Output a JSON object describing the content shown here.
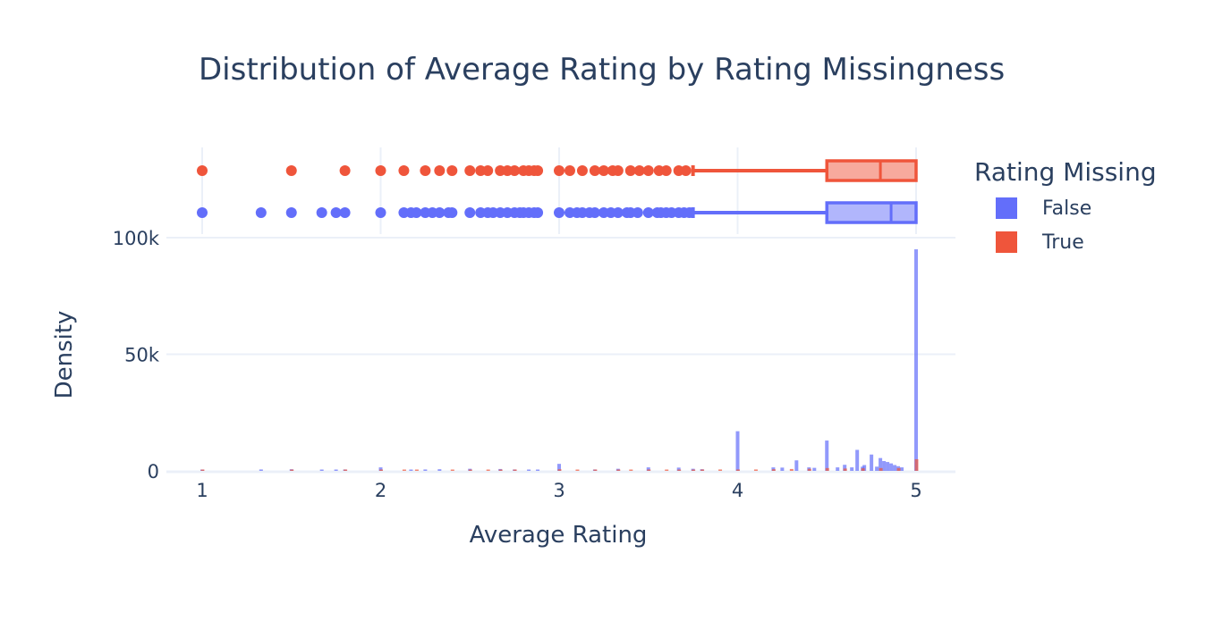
{
  "chart_data": {
    "type": "histogram",
    "title": "Distribution of Average Rating by Rating Missingness",
    "xlabel": "Average Rating",
    "ylabel": "Density",
    "x_ticks": [
      "1",
      "2",
      "3",
      "4",
      "5"
    ],
    "y_ticks": [
      "0",
      "50k",
      "100k"
    ],
    "xlim": [
      0.8,
      5.2
    ],
    "ylim": [
      0,
      100000
    ],
    "legend": {
      "title": "Rating Missing",
      "placement": "right"
    },
    "marginal": "box",
    "series": [
      {
        "name": "False",
        "color": "#636efa",
        "histogram": [
          {
            "x": 1.0,
            "y": 300
          },
          {
            "x": 1.33,
            "y": 600
          },
          {
            "x": 1.5,
            "y": 700
          },
          {
            "x": 1.67,
            "y": 500
          },
          {
            "x": 1.75,
            "y": 400
          },
          {
            "x": 1.8,
            "y": 600
          },
          {
            "x": 2.0,
            "y": 1500
          },
          {
            "x": 2.17,
            "y": 400
          },
          {
            "x": 2.25,
            "y": 600
          },
          {
            "x": 2.33,
            "y": 700
          },
          {
            "x": 2.5,
            "y": 900
          },
          {
            "x": 2.67,
            "y": 800
          },
          {
            "x": 2.75,
            "y": 600
          },
          {
            "x": 2.83,
            "y": 500
          },
          {
            "x": 2.88,
            "y": 400
          },
          {
            "x": 3.0,
            "y": 3000
          },
          {
            "x": 3.2,
            "y": 600
          },
          {
            "x": 3.33,
            "y": 900
          },
          {
            "x": 3.5,
            "y": 1500
          },
          {
            "x": 3.67,
            "y": 1400
          },
          {
            "x": 3.75,
            "y": 900
          },
          {
            "x": 3.8,
            "y": 700
          },
          {
            "x": 4.0,
            "y": 17000
          },
          {
            "x": 4.2,
            "y": 1500
          },
          {
            "x": 4.25,
            "y": 1400
          },
          {
            "x": 4.33,
            "y": 4500
          },
          {
            "x": 4.4,
            "y": 1500
          },
          {
            "x": 4.43,
            "y": 1300
          },
          {
            "x": 4.5,
            "y": 13000
          },
          {
            "x": 4.56,
            "y": 1500
          },
          {
            "x": 4.6,
            "y": 2600
          },
          {
            "x": 4.64,
            "y": 1500
          },
          {
            "x": 4.67,
            "y": 9000
          },
          {
            "x": 4.7,
            "y": 1800
          },
          {
            "x": 4.71,
            "y": 2500
          },
          {
            "x": 4.75,
            "y": 7000
          },
          {
            "x": 4.78,
            "y": 1800
          },
          {
            "x": 4.8,
            "y": 5500
          },
          {
            "x": 4.82,
            "y": 4200
          },
          {
            "x": 4.84,
            "y": 3800
          },
          {
            "x": 4.86,
            "y": 3200
          },
          {
            "x": 4.88,
            "y": 2500
          },
          {
            "x": 4.9,
            "y": 2000
          },
          {
            "x": 4.92,
            "y": 1500
          },
          {
            "x": 5.0,
            "y": 95000
          }
        ],
        "box": {
          "min": 3.75,
          "q1": 4.5,
          "median": 4.86,
          "q3": 5.0,
          "max": 5.0
        },
        "outliers": [
          1.0,
          1.33,
          1.5,
          1.67,
          1.75,
          1.8,
          2.0,
          2.13,
          2.17,
          2.2,
          2.25,
          2.29,
          2.33,
          2.38,
          2.4,
          2.5,
          2.56,
          2.6,
          2.63,
          2.67,
          2.71,
          2.75,
          2.78,
          2.8,
          2.83,
          2.86,
          2.88,
          3.0,
          3.06,
          3.1,
          3.13,
          3.17,
          3.2,
          3.25,
          3.29,
          3.33,
          3.38,
          3.4,
          3.44,
          3.5,
          3.55,
          3.57,
          3.6,
          3.63,
          3.67,
          3.7,
          3.73
        ]
      },
      {
        "name": "True",
        "color": "#ef553b",
        "histogram": [
          {
            "x": 1.0,
            "y": 400
          },
          {
            "x": 1.5,
            "y": 400
          },
          {
            "x": 1.8,
            "y": 200
          },
          {
            "x": 2.0,
            "y": 400
          },
          {
            "x": 2.13,
            "y": 200
          },
          {
            "x": 2.2,
            "y": 200
          },
          {
            "x": 2.4,
            "y": 300
          },
          {
            "x": 2.5,
            "y": 400
          },
          {
            "x": 2.6,
            "y": 250
          },
          {
            "x": 2.67,
            "y": 300
          },
          {
            "x": 2.75,
            "y": 300
          },
          {
            "x": 3.0,
            "y": 700
          },
          {
            "x": 3.1,
            "y": 300
          },
          {
            "x": 3.2,
            "y": 400
          },
          {
            "x": 3.33,
            "y": 400
          },
          {
            "x": 3.4,
            "y": 400
          },
          {
            "x": 3.5,
            "y": 600
          },
          {
            "x": 3.6,
            "y": 300
          },
          {
            "x": 3.67,
            "y": 400
          },
          {
            "x": 3.75,
            "y": 500
          },
          {
            "x": 3.8,
            "y": 600
          },
          {
            "x": 3.9,
            "y": 600
          },
          {
            "x": 4.0,
            "y": 600
          },
          {
            "x": 4.1,
            "y": 600
          },
          {
            "x": 4.2,
            "y": 700
          },
          {
            "x": 4.3,
            "y": 800
          },
          {
            "x": 4.4,
            "y": 900
          },
          {
            "x": 4.5,
            "y": 1200
          },
          {
            "x": 4.6,
            "y": 1000
          },
          {
            "x": 4.7,
            "y": 1100
          },
          {
            "x": 4.8,
            "y": 1200
          },
          {
            "x": 4.9,
            "y": 1200
          },
          {
            "x": 5.0,
            "y": 5000
          }
        ],
        "box": {
          "min": 3.75,
          "q1": 4.5,
          "median": 4.8,
          "q3": 5.0,
          "max": 5.0
        },
        "outliers": [
          1.0,
          1.5,
          1.8,
          2.0,
          2.13,
          2.25,
          2.33,
          2.4,
          2.5,
          2.56,
          2.6,
          2.67,
          2.71,
          2.75,
          2.8,
          2.83,
          2.86,
          2.88,
          3.0,
          3.06,
          3.13,
          3.2,
          3.25,
          3.3,
          3.33,
          3.4,
          3.45,
          3.5,
          3.56,
          3.6,
          3.67,
          3.71
        ]
      }
    ]
  }
}
